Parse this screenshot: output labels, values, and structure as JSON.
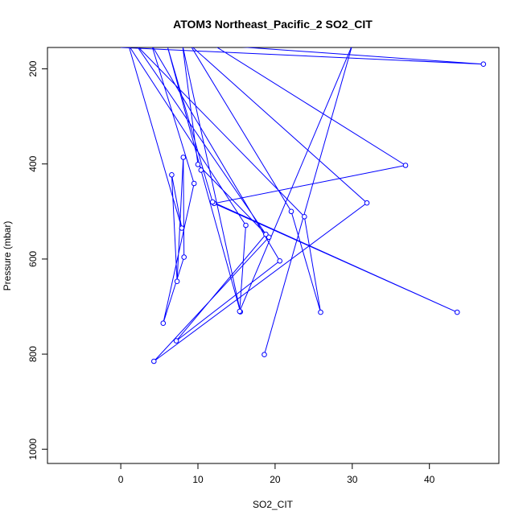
{
  "chart_data": {
    "type": "line",
    "title": "ATOM3 Northeast_Pacific_2 SO2_CIT",
    "xlabel": "SO2_CIT",
    "ylabel": "Pressure (mbar)",
    "xlim": [
      -9.5,
      49
    ],
    "ylim": [
      1030,
      155
    ],
    "y_reversed": true,
    "xticks": [
      0,
      10,
      20,
      30,
      40
    ],
    "yticks": [
      200,
      400,
      600,
      800,
      1000
    ],
    "series_color": "#0000ff",
    "marker": "open-circle",
    "points": [
      {
        "x": 0,
        "y": 155,
        "marker": false
      },
      {
        "x": 47,
        "y": 190
      },
      {
        "x": 12,
        "y": 150,
        "marker": false
      },
      {
        "x": 36.9,
        "y": 403
      },
      {
        "x": 12.1,
        "y": 483
      },
      {
        "x": 43.6,
        "y": 712
      },
      {
        "x": 11.9,
        "y": 480
      },
      {
        "x": 6,
        "y": 150,
        "marker": false
      },
      {
        "x": 10.4,
        "y": 413
      },
      {
        "x": 15.5,
        "y": 711
      },
      {
        "x": 8,
        "y": 150,
        "marker": false
      },
      {
        "x": 10,
        "y": 401
      },
      {
        "x": 19.2,
        "y": 554
      },
      {
        "x": 4.3,
        "y": 815
      },
      {
        "x": 31.9,
        "y": 482
      },
      {
        "x": 9,
        "y": 150,
        "marker": false
      },
      {
        "x": 22.1,
        "y": 500
      },
      {
        "x": 25.9,
        "y": 712
      },
      {
        "x": 23.8,
        "y": 511
      },
      {
        "x": 2,
        "y": 150,
        "marker": false
      },
      {
        "x": 18.8,
        "y": 548
      },
      {
        "x": 7.2,
        "y": 772
      },
      {
        "x": 20.6,
        "y": 604
      },
      {
        "x": 4,
        "y": 150,
        "marker": false
      },
      {
        "x": 9.5,
        "y": 441
      },
      {
        "x": 5.5,
        "y": 735
      },
      {
        "x": 8.2,
        "y": 596
      },
      {
        "x": 8.1,
        "y": 386
      },
      {
        "x": 7.3,
        "y": 647
      },
      {
        "x": 6.6,
        "y": 423
      },
      {
        "x": 7.9,
        "y": 535
      },
      {
        "x": 1,
        "y": 150,
        "marker": false
      },
      {
        "x": 16.2,
        "y": 529
      },
      {
        "x": 15.4,
        "y": 710
      },
      {
        "x": 30,
        "y": 150,
        "marker": false
      },
      {
        "x": 18.6,
        "y": 801
      }
    ],
    "grid": false,
    "legend": "none"
  }
}
